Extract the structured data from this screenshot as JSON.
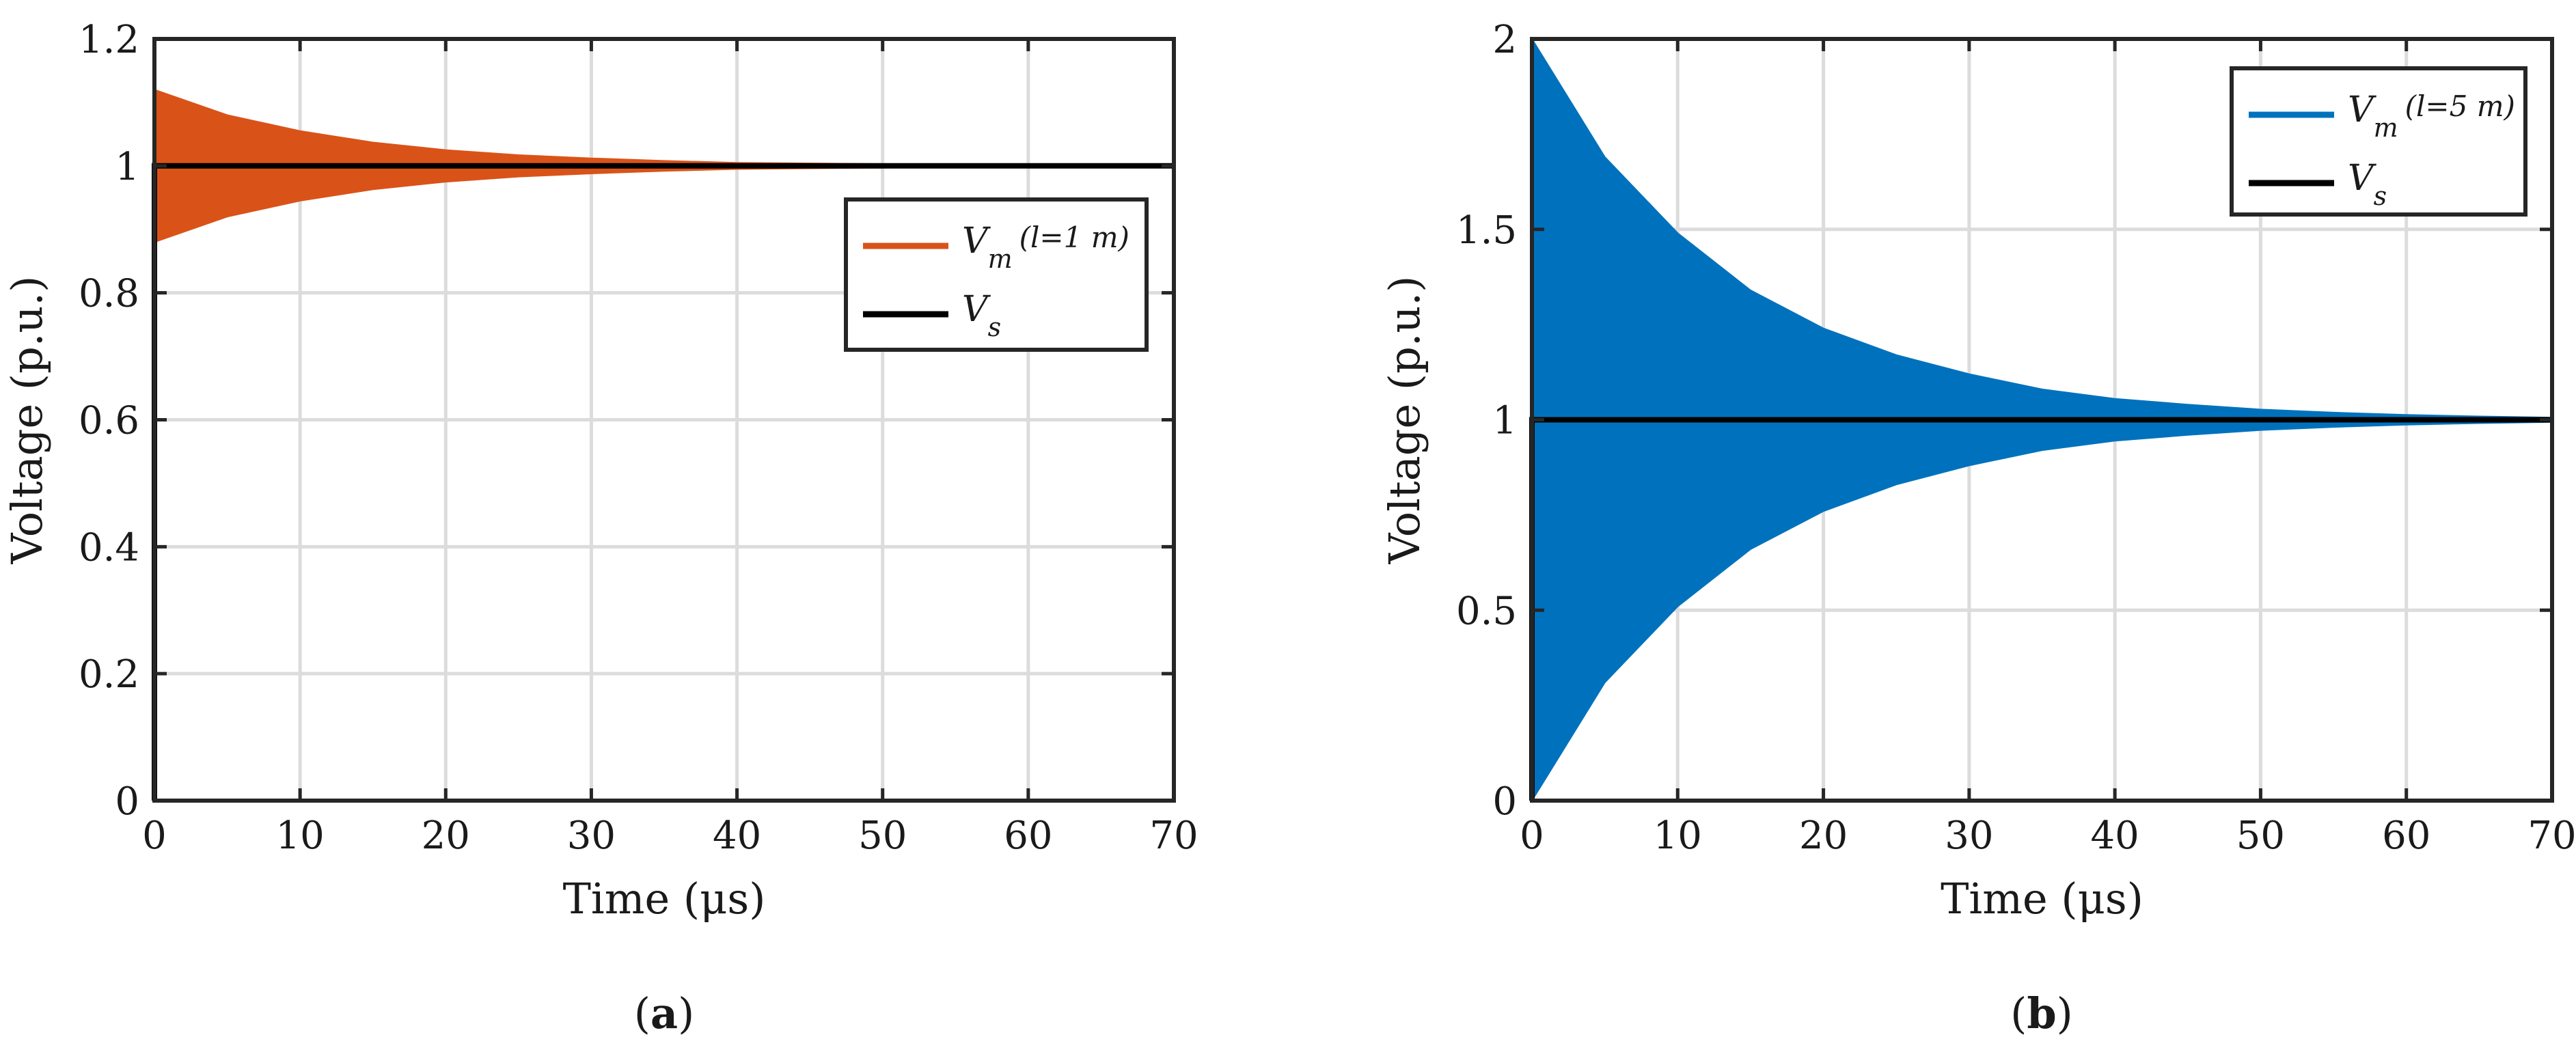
{
  "chart_data": [
    {
      "type": "area",
      "panel_label": "a",
      "xlabel": "Time (μs)",
      "ylabel": "Voltage (p.u.)",
      "xlim": [
        0,
        70
      ],
      "ylim": [
        0,
        1.2
      ],
      "xticks": [
        "0",
        "10",
        "20",
        "30",
        "40",
        "50",
        "60",
        "70"
      ],
      "yticks": [
        "0",
        "0.2",
        "0.4",
        "0.6",
        "0.8",
        "1",
        "1.2"
      ],
      "grid": true,
      "legend_position": "right",
      "series": [
        {
          "name": "Vm (l=1 m)",
          "legend_main": "V",
          "legend_sub": "m",
          "legend_paren": "(l=1 m)",
          "kind": "envelope",
          "color": "#D95319",
          "x": [
            0,
            5,
            10,
            15,
            20,
            25,
            30,
            35,
            40,
            45,
            50,
            55,
            60,
            65,
            70
          ],
          "upper": [
            1.12,
            1.08,
            1.055,
            1.037,
            1.025,
            1.017,
            1.012,
            1.008,
            1.005,
            1.004,
            1.003,
            1.002,
            1.001,
            1.001,
            1.0
          ],
          "lower": [
            0.88,
            0.92,
            0.945,
            0.963,
            0.975,
            0.983,
            0.988,
            0.992,
            0.995,
            0.996,
            0.997,
            0.998,
            0.999,
            0.999,
            1.0
          ]
        },
        {
          "name": "Vs",
          "legend_main": "V",
          "legend_sub": "s",
          "legend_paren": "",
          "kind": "step",
          "color": "#000000",
          "x": [
            0,
            0,
            70
          ],
          "y": [
            0,
            1,
            1
          ]
        }
      ]
    },
    {
      "type": "area",
      "panel_label": "b",
      "xlabel": "Time (μs)",
      "ylabel": "Voltage (p.u.)",
      "xlim": [
        0,
        70
      ],
      "ylim": [
        0,
        2
      ],
      "xticks": [
        "0",
        "10",
        "20",
        "30",
        "40",
        "50",
        "60",
        "70"
      ],
      "yticks": [
        "0",
        "0.5",
        "1",
        "1.5",
        "2"
      ],
      "grid": true,
      "legend_position": "top-right",
      "series": [
        {
          "name": "Vm (l=5 m)",
          "legend_main": "V",
          "legend_sub": "m",
          "legend_paren": "(l=5 m)",
          "kind": "envelope",
          "color": "#0072BD",
          "x": [
            0,
            5,
            10,
            15,
            20,
            25,
            30,
            35,
            40,
            45,
            50,
            55,
            60,
            65,
            70
          ],
          "upper": [
            2.0,
            1.69,
            1.49,
            1.34,
            1.24,
            1.17,
            1.12,
            1.08,
            1.055,
            1.04,
            1.027,
            1.019,
            1.013,
            1.009,
            1.006
          ],
          "lower": [
            0.0,
            0.31,
            0.51,
            0.66,
            0.76,
            0.83,
            0.88,
            0.92,
            0.945,
            0.96,
            0.973,
            0.981,
            0.987,
            0.991,
            0.994
          ]
        },
        {
          "name": "Vs",
          "legend_main": "V",
          "legend_sub": "s",
          "legend_paren": "",
          "kind": "step",
          "color": "#000000",
          "x": [
            0,
            0,
            70
          ],
          "y": [
            0,
            1,
            1
          ]
        }
      ]
    }
  ]
}
